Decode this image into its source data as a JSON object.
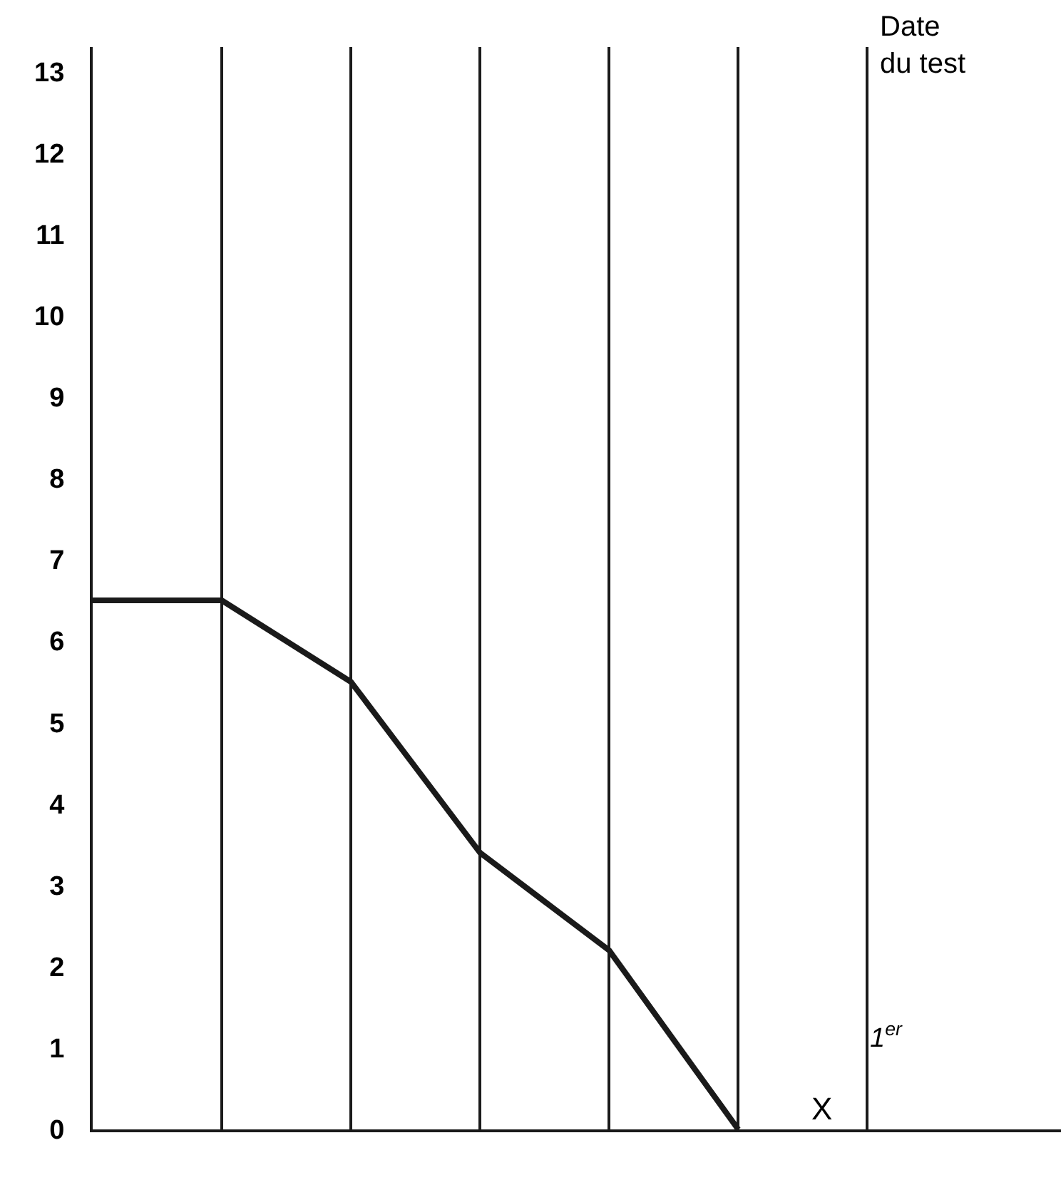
{
  "chart_data": {
    "type": "line",
    "categories": [
      null,
      null,
      null,
      null,
      null,
      null,
      null
    ],
    "values": [
      6.5,
      6.5,
      5.5,
      3.4,
      2.2,
      0,
      null
    ],
    "color": "#1a1a1a",
    "ylim": [
      0,
      13.3
    ],
    "yticks": [
      0,
      1,
      2,
      3,
      4,
      5,
      6,
      7,
      8,
      9,
      10,
      11,
      12,
      13
    ],
    "grid": "x",
    "marker": "none",
    "line_style": "solid",
    "tick_labels": "y",
    "annotations": [
      "X",
      "1$^{er}$",
      "Date du test"
    ]
  }
}
